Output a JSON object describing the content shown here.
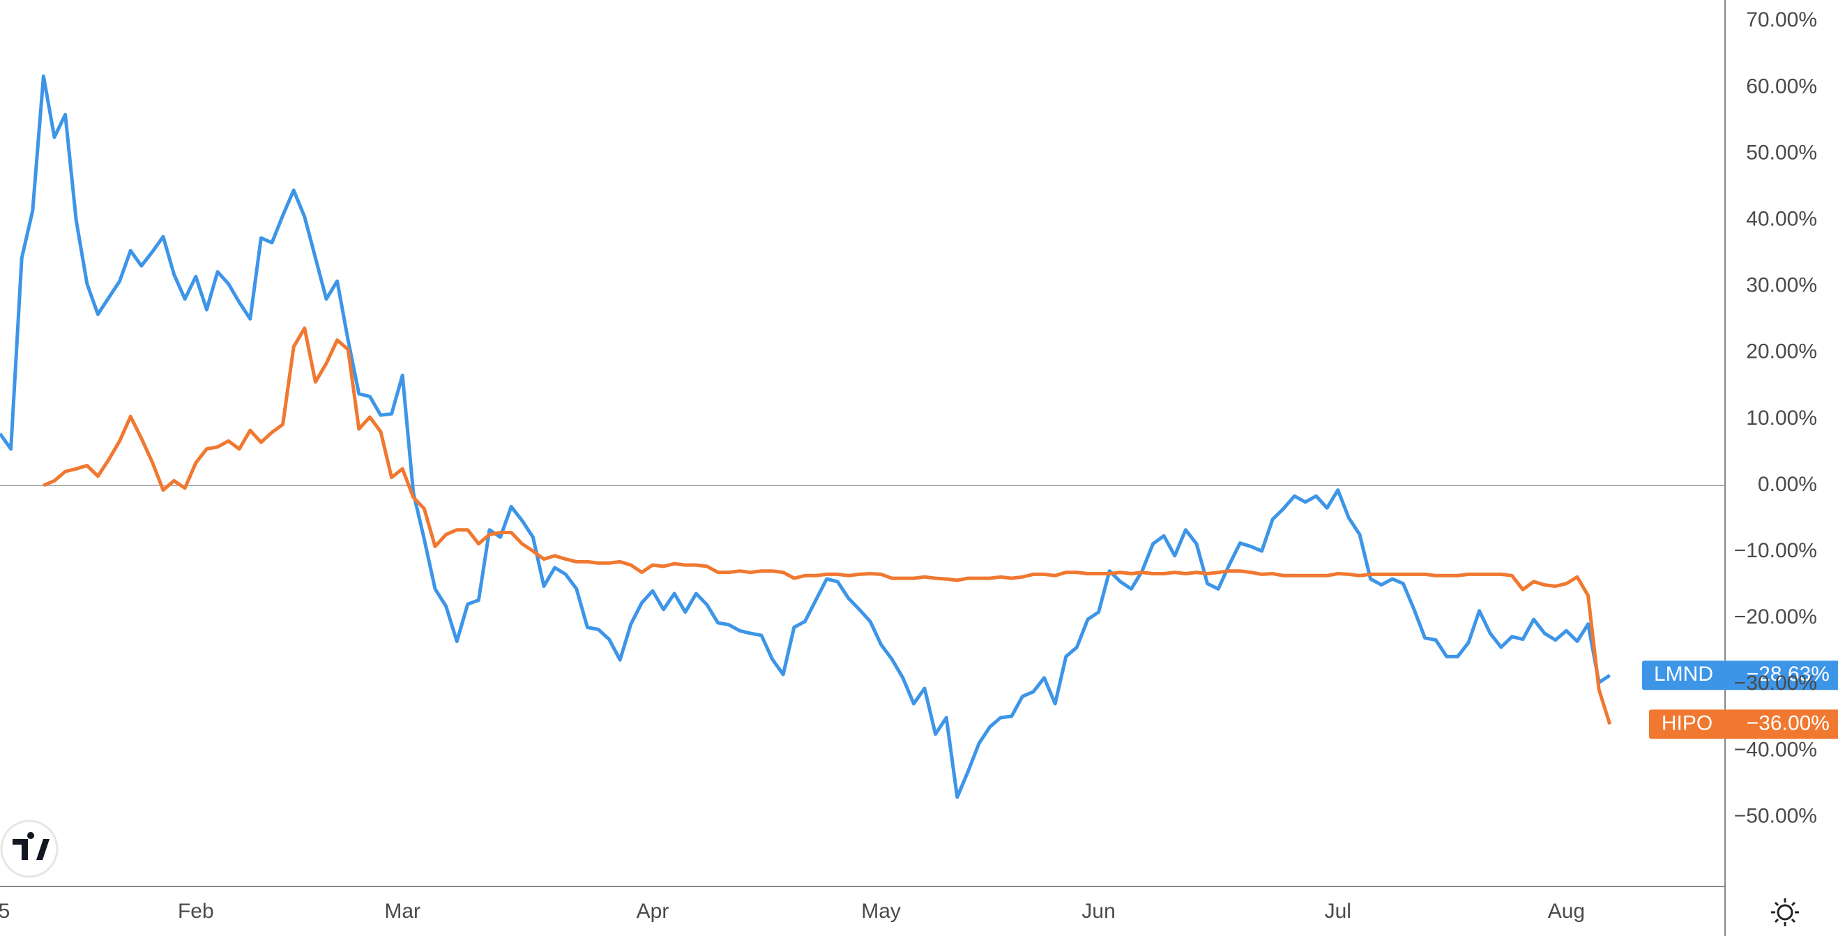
{
  "chart_data": {
    "type": "line",
    "categories": [
      "5",
      null,
      null,
      null,
      null,
      null,
      null,
      null,
      null,
      null,
      null,
      null,
      null,
      null,
      null,
      null,
      null,
      null,
      "Feb",
      null,
      null,
      null,
      null,
      null,
      null,
      null,
      null,
      null,
      null,
      null,
      null,
      null,
      null,
      null,
      null,
      null,
      null,
      "Mar",
      null,
      null,
      null,
      null,
      null,
      null,
      null,
      null,
      null,
      null,
      null,
      null,
      null,
      null,
      null,
      null,
      null,
      null,
      null,
      null,
      null,
      null,
      "Apr",
      null,
      null,
      null,
      null,
      null,
      null,
      null,
      null,
      null,
      null,
      null,
      null,
      null,
      null,
      null,
      null,
      null,
      null,
      null,
      null,
      "May",
      null,
      null,
      null,
      null,
      null,
      null,
      null,
      null,
      null,
      null,
      null,
      null,
      null,
      null,
      null,
      null,
      null,
      null,
      null,
      "Jun",
      null,
      null,
      null,
      null,
      null,
      null,
      null,
      null,
      null,
      null,
      null,
      null,
      null,
      null,
      null,
      null,
      null,
      null,
      null,
      null,
      null,
      "Jul",
      null,
      null,
      null,
      null,
      null,
      null,
      null,
      null,
      null,
      null,
      null,
      null,
      null,
      null,
      null,
      null,
      null,
      null,
      null,
      null,
      "Aug",
      null,
      null,
      null,
      null
    ],
    "series": [
      {
        "name": "LMND",
        "color": "#3d95e8",
        "values": [
          7.8,
          5.5,
          34.3,
          41.4,
          61.7,
          52.5,
          55.9,
          40,
          30.4,
          25.8,
          28.3,
          30.8,
          35.4,
          33.1,
          35.2,
          37.5,
          31.8,
          28.1,
          31.5,
          26.5,
          32.2,
          30.4,
          27.6,
          25.1,
          37.3,
          36.6,
          40.7,
          44.5,
          40.5,
          34.3,
          28.1,
          30.8,
          21.9,
          13.8,
          13.4,
          10.6,
          10.8,
          16.6,
          -1.1,
          -8.1,
          -15.6,
          -18.2,
          -23.5,
          -17.9,
          -17.3,
          -6.7,
          -7.8,
          -3.2,
          -5.3,
          -7.8,
          -15.2,
          -12.4,
          -13.4,
          -15.6,
          -21.4,
          -21.7,
          -23.2,
          -26.3,
          -20.9,
          -17.7,
          -15.9,
          -18.7,
          -16.3,
          -19.1,
          -16.3,
          -18.0,
          -20.7,
          -21.0,
          -21.9,
          -22.3,
          -22.6,
          -26.2,
          -28.5,
          -21.4,
          -20.5,
          -17.3,
          -14.1,
          -14.5,
          -17.0,
          -18.7,
          -20.5,
          -24.0,
          -26.2,
          -29.0,
          -32.9,
          -30.6,
          -37.5,
          -35.0,
          -47.0,
          -43.1,
          -38.9,
          -36.4,
          -35.0,
          -34.8,
          -31.8,
          -31.1,
          -29.0,
          -32.9,
          -25.8,
          -24.4,
          -20.2,
          -19.1,
          -12.9,
          -14.5,
          -15.6,
          -12.9,
          -8.8,
          -7.6,
          -10.6,
          -6.7,
          -8.8,
          -14.8,
          -15.6,
          -12.0,
          -8.7,
          -9.2,
          -9.9,
          -5.1,
          -3.5,
          -1.6,
          -2.5,
          -1.6,
          -3.4,
          -0.7,
          -4.9,
          -7.4,
          -14.1,
          -15.0,
          -14.1,
          -14.8,
          -18.7,
          -23.0,
          -23.3,
          -25.8,
          -25.8,
          -23.7,
          -18.9,
          -22.3,
          -24.4,
          -22.8,
          -23.2,
          -20.2,
          -22.3,
          -23.3,
          -21.9,
          -23.5,
          -20.9,
          -29.7,
          -28.63
        ],
        "value_labels": [
          null,
          null,
          null,
          null,
          null,
          null,
          null,
          null,
          null,
          null,
          null,
          null,
          null,
          null,
          null,
          null,
          null,
          null,
          null,
          null,
          null,
          null,
          null,
          null,
          null,
          null,
          null,
          null,
          null,
          null,
          null,
          null,
          null,
          null,
          null,
          null,
          null,
          null,
          null,
          null,
          null,
          null,
          null,
          null,
          null,
          null,
          null,
          null,
          null,
          null,
          null,
          null,
          null,
          null,
          null,
          null,
          null,
          null,
          null,
          null,
          null,
          null,
          null,
          null,
          null,
          null,
          null,
          null,
          null,
          null,
          null,
          null,
          null,
          null,
          null,
          null,
          null,
          null,
          null,
          null,
          null,
          null,
          null,
          null,
          null,
          null,
          null,
          null,
          null,
          null,
          null,
          null,
          null,
          null,
          null,
          null,
          null,
          null,
          null,
          null,
          null,
          null,
          null,
          null,
          null,
          null,
          null,
          null,
          null,
          null,
          null,
          null,
          null,
          null,
          null,
          null,
          null,
          null,
          null,
          null,
          null,
          null,
          null,
          null,
          null,
          null,
          null,
          null,
          null,
          null,
          null,
          null,
          null,
          null,
          null,
          null,
          null,
          null,
          null,
          null,
          null,
          null,
          null,
          null,
          null,
          null,
          null,
          null,
          "−28.63%"
        ]
      },
      {
        "name": "HIPO",
        "color": "#f07830",
        "values": [
          null,
          null,
          null,
          null,
          0,
          0.7,
          2.1,
          2.5,
          3.0,
          1.4,
          3.9,
          6.7,
          10.4,
          7.1,
          3.5,
          -0.7,
          0.7,
          -0.4,
          3.4,
          5.5,
          5.8,
          6.7,
          5.5,
          8.3,
          6.5,
          8.0,
          9.2,
          20.9,
          23.7,
          15.6,
          18.4,
          21.9,
          20.5,
          8.5,
          10.3,
          8.1,
          1.2,
          2.5,
          -1.8,
          -3.5,
          -9.2,
          -7.4,
          -6.7,
          -6.7,
          -8.8,
          -7.4,
          -7.1,
          -7.1,
          -8.8,
          -9.9,
          -11.1,
          -10.6,
          -11.1,
          -11.5,
          -11.5,
          -11.7,
          -11.7,
          -11.5,
          -12.0,
          -13.1,
          -12.0,
          -12.2,
          -11.8,
          -12.0,
          -12.0,
          -12.2,
          -13.1,
          -13.1,
          -12.9,
          -13.1,
          -12.9,
          -12.9,
          -13.1,
          -14.0,
          -13.6,
          -13.6,
          -13.4,
          -13.4,
          -13.6,
          -13.4,
          -13.3,
          -13.4,
          -14.0,
          -14.0,
          -14.0,
          -13.8,
          -14.0,
          -14.1,
          -14.3,
          -14.0,
          -14.0,
          -14.0,
          -13.8,
          -14.0,
          -13.8,
          -13.4,
          -13.4,
          -13.6,
          -13.1,
          -13.1,
          -13.3,
          -13.3,
          -13.3,
          -13.1,
          -13.3,
          -13.1,
          -13.3,
          -13.3,
          -13.1,
          -13.3,
          -13.1,
          -13.3,
          -13.1,
          -12.9,
          -12.9,
          -13.1,
          -13.4,
          -13.3,
          -13.6,
          -13.6,
          -13.6,
          -13.6,
          -13.6,
          -13.3,
          -13.4,
          -13.6,
          -13.4,
          -13.4,
          -13.4,
          -13.4,
          -13.4,
          -13.4,
          -13.6,
          -13.6,
          -13.6,
          -13.4,
          -13.4,
          -13.4,
          -13.4,
          -13.6,
          -15.7,
          -14.5,
          -15.0,
          -15.2,
          -14.8,
          -13.8,
          -16.6,
          -30.8,
          -36.0
        ],
        "value_labels": [
          null,
          null,
          null,
          null,
          null,
          null,
          null,
          null,
          null,
          null,
          null,
          null,
          null,
          null,
          null,
          null,
          null,
          null,
          null,
          null,
          null,
          null,
          null,
          null,
          null,
          null,
          null,
          null,
          null,
          null,
          null,
          null,
          null,
          null,
          null,
          null,
          null,
          null,
          null,
          null,
          null,
          null,
          null,
          null,
          null,
          null,
          null,
          null,
          null,
          null,
          null,
          null,
          null,
          null,
          null,
          null,
          null,
          null,
          null,
          null,
          null,
          null,
          null,
          null,
          null,
          null,
          null,
          null,
          null,
          null,
          null,
          null,
          null,
          null,
          null,
          null,
          null,
          null,
          null,
          null,
          null,
          null,
          null,
          null,
          null,
          null,
          null,
          null,
          null,
          null,
          null,
          null,
          null,
          null,
          null,
          null,
          null,
          null,
          null,
          null,
          null,
          null,
          null,
          null,
          null,
          null,
          null,
          null,
          null,
          null,
          null,
          null,
          null,
          null,
          null,
          null,
          null,
          null,
          null,
          null,
          null,
          null,
          null,
          null,
          null,
          null,
          null,
          null,
          null,
          null,
          null,
          null,
          null,
          null,
          null,
          null,
          null,
          null,
          null,
          null,
          null,
          null,
          null,
          null,
          null,
          null,
          null,
          null,
          "−36.00%"
        ]
      }
    ],
    "ylim": [
      -60.46,
      73.18
    ],
    "yticks": [
      {
        "value": 70,
        "label": "70.00%"
      },
      {
        "value": 60,
        "label": "60.00%"
      },
      {
        "value": 50,
        "label": "50.00%"
      },
      {
        "value": 40,
        "label": "40.00%"
      },
      {
        "value": 30,
        "label": "30.00%"
      },
      {
        "value": 20,
        "label": "20.00%"
      },
      {
        "value": 10,
        "label": "10.00%"
      },
      {
        "value": 0,
        "label": "0.00%"
      },
      {
        "value": -10,
        "label": "−10.00%"
      },
      {
        "value": -20,
        "label": "−20.00%"
      },
      {
        "value": -30,
        "label": "−30.00%"
      },
      {
        "value": -40,
        "label": "−40.00%"
      },
      {
        "value": -50,
        "label": "−50.00%"
      }
    ],
    "grid": false,
    "zero_line": true
  }
}
